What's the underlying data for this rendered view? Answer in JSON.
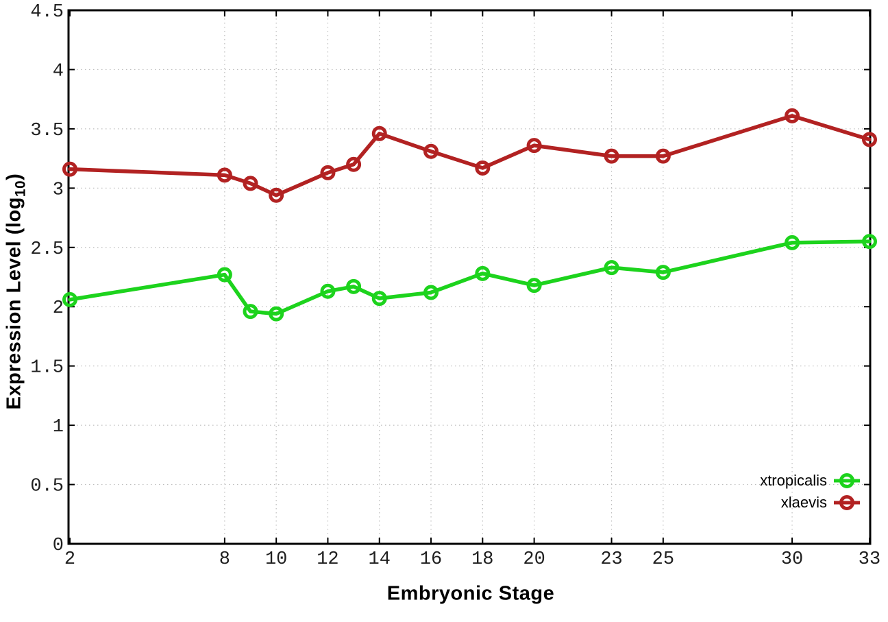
{
  "chart_data": {
    "type": "line",
    "title": "",
    "xlabel": "Embryonic Stage",
    "ylabel": "Expression Level (log10)",
    "ylabel_parts": {
      "main": "Expression Level (log",
      "sub": "10",
      "close": ")"
    },
    "x": [
      2,
      8,
      9,
      10,
      12,
      13,
      14,
      16,
      18,
      20,
      23,
      25,
      30,
      33
    ],
    "series": [
      {
        "name": "xtropicalis",
        "color": "#1dd31d",
        "values": [
          2.06,
          2.27,
          1.96,
          1.94,
          2.13,
          2.17,
          2.07,
          2.12,
          2.28,
          2.18,
          2.33,
          2.29,
          2.54,
          2.55
        ]
      },
      {
        "name": "xlaevis",
        "color": "#b22222",
        "values": [
          3.16,
          3.11,
          3.04,
          2.94,
          3.13,
          3.2,
          3.46,
          3.31,
          3.17,
          3.36,
          3.27,
          3.27,
          3.61,
          3.41
        ]
      }
    ],
    "xticks": [
      2,
      8,
      10,
      12,
      14,
      16,
      18,
      20,
      23,
      25,
      30,
      33
    ],
    "xtick_labels": [
      "2",
      "8",
      "10",
      "12",
      "14",
      "16",
      "18",
      "20",
      "23",
      "25",
      "30",
      "33"
    ],
    "yticks": [
      0,
      0.5,
      1,
      1.5,
      2,
      2.5,
      3,
      3.5,
      4,
      4.5
    ],
    "ytick_labels": [
      "0",
      "0.5",
      "1",
      "1.5",
      "2",
      "2.5",
      "3",
      "3.5",
      "4",
      "4.5"
    ],
    "xlim": [
      2,
      33
    ],
    "ylim": [
      0,
      4.5
    ],
    "grid": true,
    "legend_position": "inside-bottom-right",
    "marker": "open-circle",
    "colors": {
      "grid": "#bdbdbd",
      "axis": "#000000",
      "tick_text": "#1f1f1f",
      "background": "#ffffff"
    }
  }
}
